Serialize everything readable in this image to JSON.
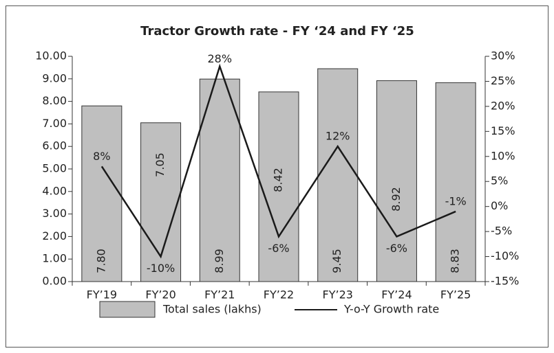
{
  "chart_data": {
    "type": "bar_line",
    "title": "Tractor Growth rate - FY ‘24 and FY ‘25",
    "categories": [
      "FY’19",
      "FY’20",
      "FY’21",
      "FY’22",
      "FY’23",
      "FY’24",
      "FY’25"
    ],
    "series": [
      {
        "name": "Total sales (lakhs)",
        "color": "#bfbfbf",
        "type": "bar",
        "axis": "y",
        "values": [
          7.8,
          7.05,
          8.99,
          8.42,
          9.45,
          8.92,
          8.83
        ],
        "value_labels": [
          "7.80",
          "7.05",
          "8.99",
          "8.42",
          "9.45",
          "8.92",
          "8.83"
        ]
      },
      {
        "name": "Y-o-Y Growth rate",
        "color": "#1a1a1a",
        "type": "line",
        "axis": "y2",
        "values": [
          8,
          -10,
          28,
          -6,
          12,
          -6,
          -1
        ],
        "value_labels": [
          "8%",
          "-10%",
          "28%",
          "-6%",
          "12%",
          "-6%",
          "-1%"
        ]
      }
    ],
    "ylim": [
      0,
      10
    ],
    "yticks": [
      {
        "value": 0,
        "label": "0.00"
      },
      {
        "value": 1,
        "label": "1.00"
      },
      {
        "value": 2,
        "label": "2.00"
      },
      {
        "value": 3,
        "label": "3.00"
      },
      {
        "value": 4,
        "label": "4.00"
      },
      {
        "value": 5,
        "label": "5.00"
      },
      {
        "value": 6,
        "label": "6.00"
      },
      {
        "value": 7,
        "label": "7.00"
      },
      {
        "value": 8,
        "label": "8.00"
      },
      {
        "value": 9,
        "label": "9.00"
      },
      {
        "value": 10,
        "label": "10.00"
      }
    ],
    "y2lim": [
      -15,
      30
    ],
    "y2ticks": [
      {
        "value": -15,
        "label": "-15%"
      },
      {
        "value": -10,
        "label": "-10%"
      },
      {
        "value": -5,
        "label": "-5%"
      },
      {
        "value": 0,
        "label": "0%"
      },
      {
        "value": 5,
        "label": "5%"
      },
      {
        "value": 10,
        "label": "10%"
      },
      {
        "value": 15,
        "label": "15%"
      },
      {
        "value": 20,
        "label": "20%"
      },
      {
        "value": 25,
        "label": "25%"
      },
      {
        "value": 30,
        "label": "30%"
      }
    ],
    "grid": false
  }
}
